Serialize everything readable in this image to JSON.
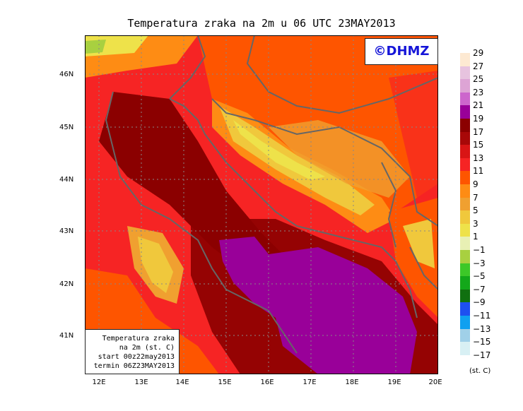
{
  "title": "Temperatura zraka na 2m u 06 UTC 23MAY2013",
  "logo": "©DHMZ",
  "info": {
    "line1": "Temperatura zraka",
    "line2": "na 2m (st. C)",
    "line3": "start 00z22may2013",
    "line4": "termin 06Z23MAY2013"
  },
  "axes": {
    "lat_labels": [
      "46N",
      "45N",
      "44N",
      "43N",
      "42N",
      "41N"
    ],
    "lon_labels": [
      "12E",
      "13E",
      "14E",
      "15E",
      "16E",
      "17E",
      "18E",
      "19E",
      "20E"
    ]
  },
  "legend": {
    "labels": [
      "29",
      "27",
      "25",
      "23",
      "21",
      "19",
      "17",
      "15",
      "13",
      "11",
      "9",
      "7",
      "5",
      "3",
      "1",
      "−1",
      "−3",
      "−5",
      "−7",
      "−9",
      "−11",
      "−13",
      "−15",
      "−17"
    ],
    "colors": [
      "#fde9d2",
      "#e7c3df",
      "#dda4d5",
      "#cc66cc",
      "#990099",
      "#8b0000",
      "#a80808",
      "#d91515",
      "#f62424",
      "#fe5500",
      "#fe8c14",
      "#f0a030",
      "#f0c83c",
      "#eee24a",
      "#e8f0b4",
      "#a8d040",
      "#3cc828",
      "#13a81a",
      "#107010",
      "#1e50f0",
      "#10a0f0",
      "#a0d0e8",
      "#d8f0f4",
      "#eefafa"
    ],
    "units": "(st. C)"
  }
}
